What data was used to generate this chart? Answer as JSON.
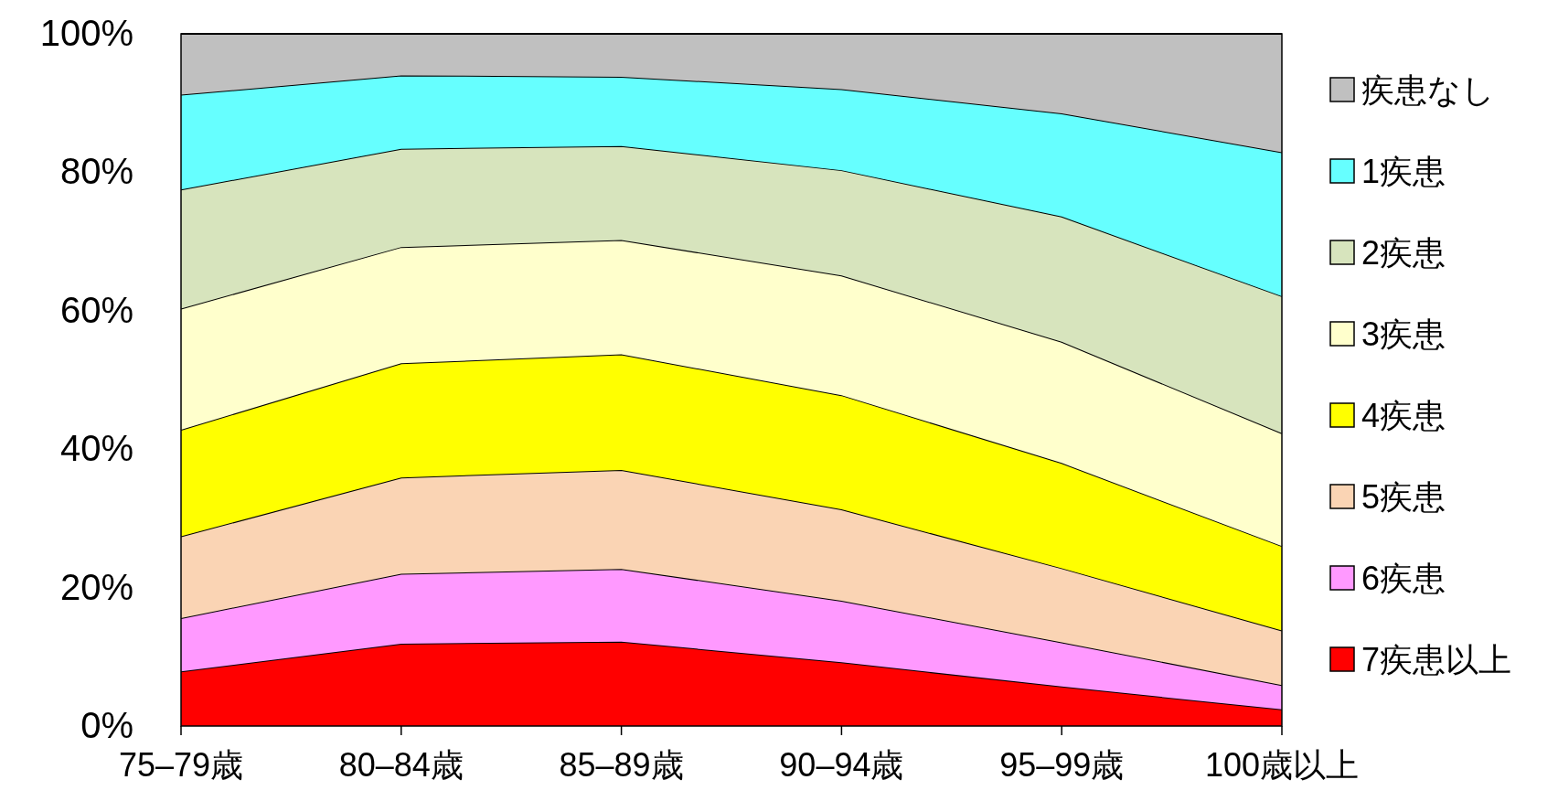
{
  "chart_data": {
    "type": "area",
    "stacked": true,
    "categories": [
      "75–79歳",
      "80–84歳",
      "85–89歳",
      "90–94歳",
      "95–99歳",
      "100歳以上"
    ],
    "ylim": [
      0,
      100
    ],
    "yticks": [
      {
        "value": 0,
        "label": "0%"
      },
      {
        "value": 20,
        "label": "20%"
      },
      {
        "value": 40,
        "label": "40%"
      },
      {
        "value": 60,
        "label": "60%"
      },
      {
        "value": 80,
        "label": "80%"
      },
      {
        "value": 100,
        "label": "100%"
      }
    ],
    "legend": "right",
    "grid": false,
    "series": [
      {
        "name": "7疾患以上",
        "color": "#ff0000",
        "values": [
          7.9,
          11.9,
          12.2,
          9.2,
          5.7,
          2.4
        ]
      },
      {
        "name": "6疾患",
        "color": "#ff99ff",
        "values": [
          7.7,
          10.1,
          10.5,
          8.9,
          6.4,
          3.5
        ]
      },
      {
        "name": "5疾患",
        "color": "#fad4b4",
        "values": [
          11.8,
          13.9,
          14.3,
          13.2,
          10.7,
          7.9
        ]
      },
      {
        "name": "4疾患",
        "color": "#ffff00",
        "values": [
          15.4,
          16.5,
          16.7,
          16.5,
          15.2,
          12.2
        ]
      },
      {
        "name": "3疾患",
        "color": "#ffffcc",
        "values": [
          17.5,
          16.8,
          16.5,
          17.3,
          17.5,
          16.3
        ]
      },
      {
        "name": "2疾患",
        "color": "#d7e4bd",
        "values": [
          17.2,
          14.2,
          13.6,
          15.2,
          18.1,
          19.8
        ]
      },
      {
        "name": "1疾患",
        "color": "#66ffff",
        "values": [
          13.7,
          10.6,
          10.0,
          11.7,
          14.9,
          20.8
        ]
      },
      {
        "name": "疾患なし",
        "color": "#c0c0c0",
        "values": [
          8.8,
          6.0,
          6.2,
          8.0,
          11.5,
          17.1
        ]
      }
    ]
  }
}
